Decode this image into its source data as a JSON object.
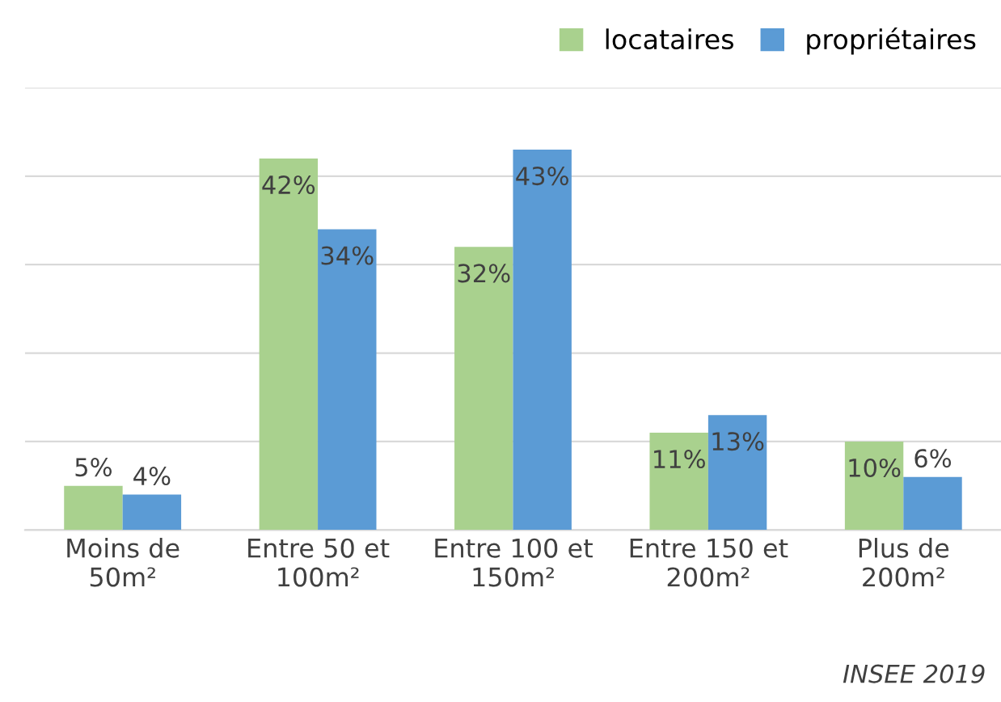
{
  "chart_data": {
    "type": "bar",
    "categories": [
      "Moins de\n50m²",
      "Entre 50 et\n100m²",
      "Entre 100 et\n150m²",
      "Entre 150 et\n200m²",
      "Plus de\n200m²"
    ],
    "series": [
      {
        "name": "locataires",
        "color": "#a9d18e",
        "values": [
          5,
          42,
          32,
          11,
          10
        ],
        "value_labels": [
          "5%",
          "42%",
          "32%",
          "11%",
          "10%"
        ]
      },
      {
        "name": "propriétaires",
        "color": "#5b9bd5",
        "values": [
          4,
          34,
          43,
          13,
          6
        ],
        "value_labels": [
          "4%",
          "34%",
          "43%",
          "13%",
          "6%"
        ]
      }
    ],
    "ylim": [
      0,
      50
    ],
    "yticks": [
      {
        "value": 0,
        "label": null
      },
      {
        "value": 10,
        "label": null
      },
      {
        "value": 20,
        "label": null
      },
      {
        "value": 30,
        "label": null
      },
      {
        "value": 40,
        "label": null
      },
      {
        "value": 50,
        "label": null
      }
    ],
    "tick_labels": "x",
    "grid": "y",
    "legend": "top right",
    "annotations": [
      "INSEE 2019"
    ]
  }
}
